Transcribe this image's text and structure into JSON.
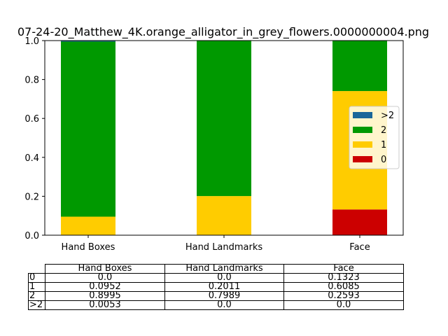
{
  "chart_data": {
    "type": "bar",
    "stacked": true,
    "title": "07-24-20_Matthew_4K.orange_alligator_in_grey_flowers.0000000004.png",
    "xlabel": "",
    "ylabel": "",
    "categories": [
      "Hand Boxes",
      "Hand Landmarks",
      "Face"
    ],
    "ylim": [
      0,
      1.0
    ],
    "yticks": [
      "0.0",
      "0.2",
      "0.4",
      "0.6",
      "0.8",
      "1.0"
    ],
    "grid": false,
    "legend_position": "center-right",
    "series": [
      {
        "name": "0",
        "color": "#cc0000",
        "values": [
          0.0,
          0.0,
          0.1323
        ]
      },
      {
        "name": "1",
        "color": "#ffcc00",
        "values": [
          0.0952,
          0.2011,
          0.6085
        ]
      },
      {
        "name": "2",
        "color": "#009900",
        "values": [
          0.8995,
          0.7989,
          0.2593
        ]
      },
      {
        "name": ">2",
        "color": "#1a6699",
        "values": [
          0.0053,
          0.0,
          0.0
        ]
      }
    ],
    "legend_order": [
      ">2",
      "2",
      "1",
      "0"
    ]
  },
  "table": {
    "columns": [
      "Hand Boxes",
      "Hand Landmarks",
      "Face"
    ],
    "rows": [
      {
        "label": "0",
        "cells": [
          "0.0",
          "0.0",
          "0.1323"
        ]
      },
      {
        "label": "1",
        "cells": [
          "0.0952",
          "0.2011",
          "0.6085"
        ]
      },
      {
        "label": "2",
        "cells": [
          "0.8995",
          "0.7989",
          "0.2593"
        ]
      },
      {
        "label": ">2",
        "cells": [
          "0.0053",
          "0.0",
          "0.0"
        ]
      }
    ]
  }
}
